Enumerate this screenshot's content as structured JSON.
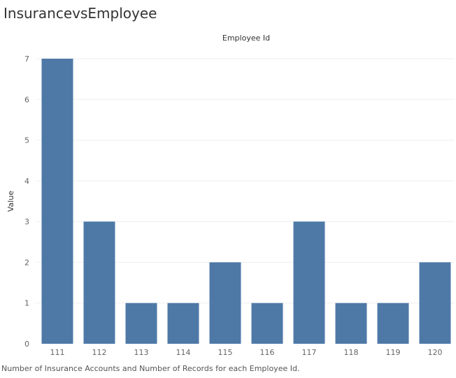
{
  "page": {
    "title": "InsurancevsEmployee",
    "caption": "Number of Insurance Accounts and Number of Records for each Employee Id."
  },
  "chart_data": {
    "type": "bar",
    "title": "",
    "xlabel": "Employee Id",
    "ylabel": "Value",
    "categories": [
      "111",
      "112",
      "113",
      "114",
      "115",
      "116",
      "117",
      "118",
      "119",
      "120"
    ],
    "values": [
      7,
      3,
      1,
      1,
      2,
      1,
      3,
      1,
      1,
      2
    ],
    "ylim": [
      0,
      7
    ],
    "yticks": [
      0,
      1,
      2,
      3,
      4,
      5,
      6,
      7
    ],
    "grid": true,
    "bar_color": "#4e79a7",
    "gridline_color": "#eeeeee"
  }
}
